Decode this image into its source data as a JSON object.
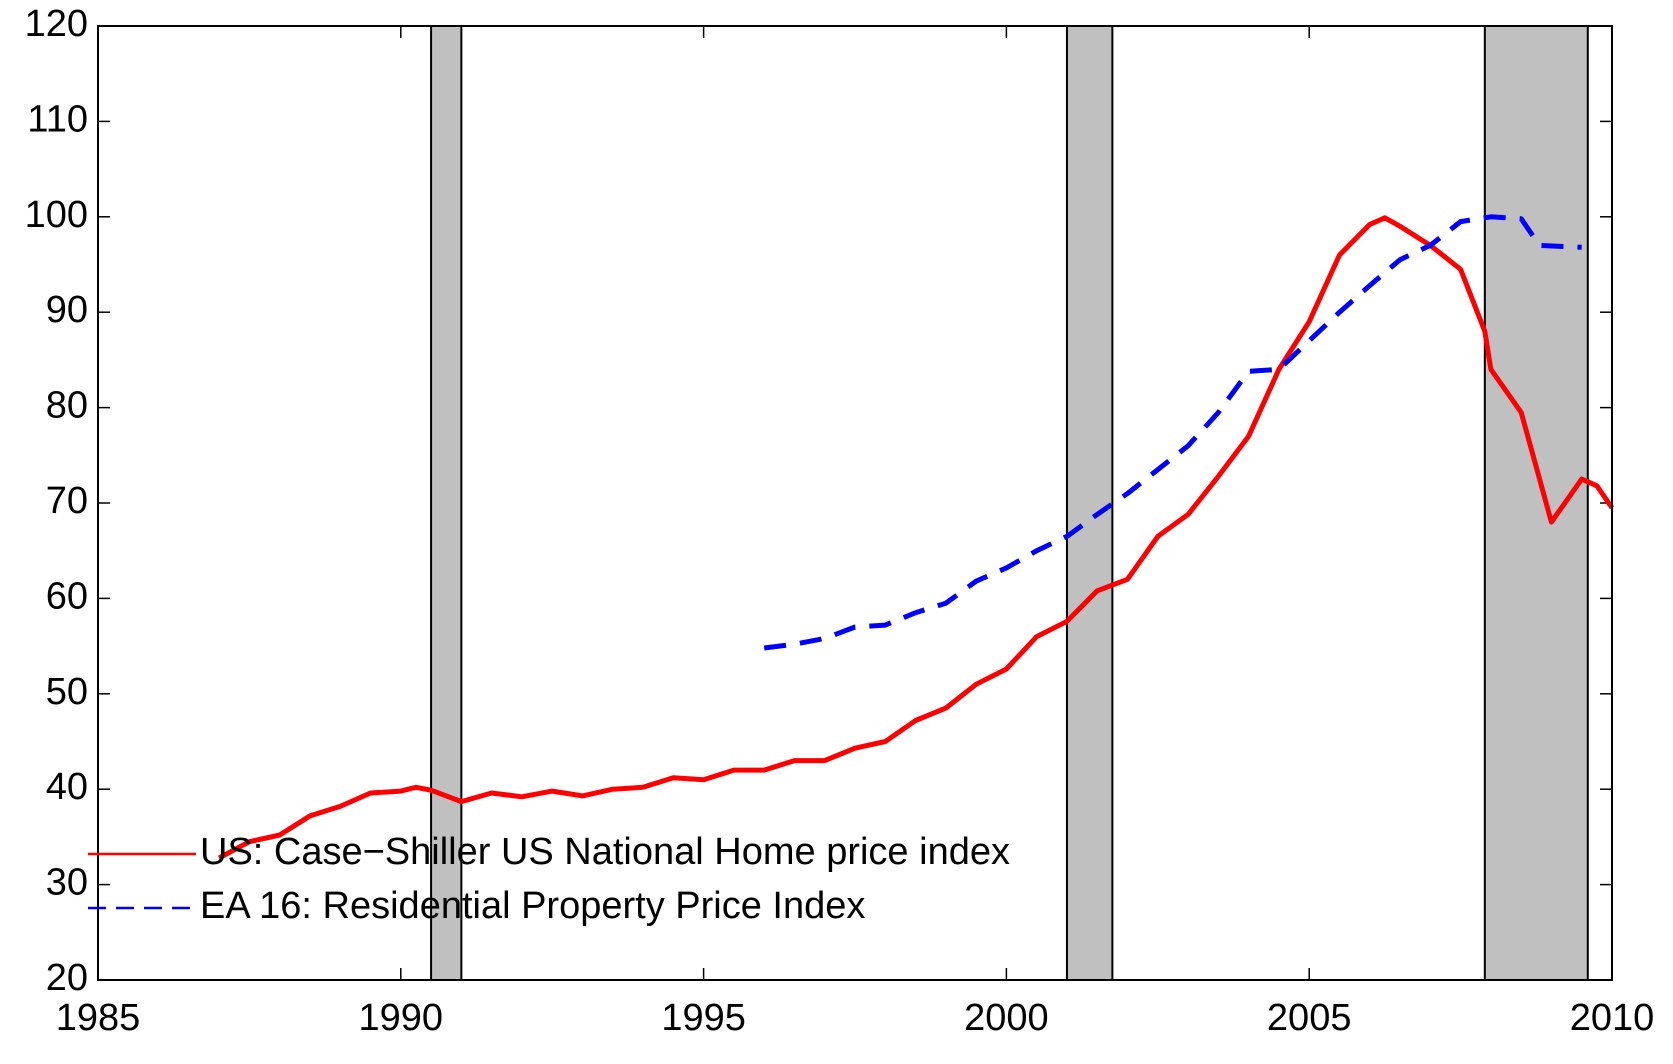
{
  "chart_data": {
    "type": "line",
    "xlim": [
      1985,
      2010
    ],
    "xticks": [
      1985,
      1990,
      1995,
      2000,
      2005,
      2010
    ],
    "ylim": [
      20,
      120
    ],
    "yticks": [
      20,
      30,
      40,
      50,
      60,
      70,
      80,
      90,
      100,
      110,
      120
    ],
    "shaded_spans": {
      "color": "#c0c0c0",
      "x": [
        [
          1990.5,
          1991.0
        ],
        [
          2001.0,
          2001.75
        ],
        [
          2007.9,
          2009.6
        ]
      ]
    },
    "legend": "lower left",
    "series": [
      {
        "name": "US: Case−Shiller US National Home price index",
        "color": "#ff0000",
        "style": "solid",
        "x": [
          1987.0,
          1987.5,
          1988.0,
          1988.5,
          1989.0,
          1989.5,
          1990.0,
          1990.25,
          1990.5,
          1991.0,
          1991.5,
          1992.0,
          1992.5,
          1993.0,
          1993.5,
          1994.0,
          1994.5,
          1995.0,
          1995.5,
          1996.0,
          1996.5,
          1997.0,
          1997.5,
          1998.0,
          1998.5,
          1999.0,
          1999.5,
          2000.0,
          2000.5,
          2001.0,
          2001.5,
          2002.0,
          2002.5,
          2003.0,
          2003.5,
          2004.0,
          2004.5,
          2005.0,
          2005.5,
          2006.0,
          2006.25,
          2006.5,
          2007.0,
          2007.5,
          2007.9,
          2008.0,
          2008.5,
          2009.0,
          2009.5,
          2009.75,
          2010.0
        ],
        "values": [
          32.8,
          34.5,
          35.2,
          37.2,
          38.2,
          39.6,
          39.8,
          40.2,
          39.9,
          38.7,
          39.6,
          39.2,
          39.8,
          39.3,
          40.0,
          40.2,
          41.2,
          41.0,
          42.0,
          42.0,
          43.0,
          43.0,
          44.3,
          45.0,
          47.2,
          48.5,
          51.0,
          52.6,
          56.0,
          57.6,
          60.8,
          62.0,
          66.5,
          68.8,
          72.8,
          77.0,
          84.0,
          89.0,
          96.0,
          99.2,
          99.9,
          99.0,
          97.0,
          94.5,
          88.0,
          84.0,
          79.5,
          68.0,
          72.5,
          71.8,
          69.5
        ]
      },
      {
        "name": "EA 16: Residential Property Price Index",
        "color": "#0000ff",
        "style": "dashed",
        "x": [
          1996.0,
          1996.5,
          1997.0,
          1997.5,
          1998.0,
          1998.5,
          1999.0,
          1999.5,
          2000.0,
          2000.5,
          2001.0,
          2001.5,
          2002.0,
          2002.5,
          2003.0,
          2003.5,
          2004.0,
          2004.5,
          2005.0,
          2005.5,
          2006.0,
          2006.5,
          2007.0,
          2007.5,
          2008.0,
          2008.5,
          2008.8,
          2009.5
        ],
        "values": [
          54.8,
          55.2,
          55.8,
          57.0,
          57.2,
          58.5,
          59.5,
          61.8,
          63.2,
          65.0,
          66.5,
          68.8,
          71.0,
          73.5,
          76.0,
          79.5,
          83.8,
          84.0,
          87.0,
          90.0,
          92.8,
          95.5,
          97.0,
          99.5,
          100.0,
          99.8,
          97.0,
          96.8
        ]
      }
    ]
  }
}
